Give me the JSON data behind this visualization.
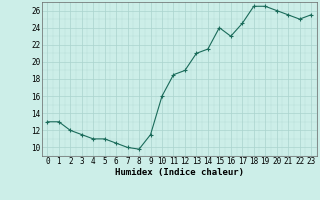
{
  "x": [
    0,
    1,
    2,
    3,
    4,
    5,
    6,
    7,
    8,
    9,
    10,
    11,
    12,
    13,
    14,
    15,
    16,
    17,
    18,
    19,
    20,
    21,
    22,
    23
  ],
  "y": [
    13,
    13,
    12,
    11.5,
    11,
    11,
    10.5,
    10,
    9.8,
    11.5,
    16,
    18.5,
    19,
    21,
    21.5,
    24,
    23,
    24.5,
    26.5,
    26.5,
    26,
    25.5,
    25,
    25.5
  ],
  "line_color": "#1a6b5a",
  "marker_color": "#1a6b5a",
  "bg_color": "#cceee8",
  "grid_color_major": "#aad4ce",
  "xlabel": "Humidex (Indice chaleur)",
  "ylim": [
    9,
    27
  ],
  "xlim": [
    -0.5,
    23.5
  ],
  "yticks": [
    10,
    12,
    14,
    16,
    18,
    20,
    22,
    24,
    26
  ],
  "xticks": [
    0,
    1,
    2,
    3,
    4,
    5,
    6,
    7,
    8,
    9,
    10,
    11,
    12,
    13,
    14,
    15,
    16,
    17,
    18,
    19,
    20,
    21,
    22,
    23
  ],
  "label_fontsize": 6.5,
  "tick_fontsize": 5.5
}
